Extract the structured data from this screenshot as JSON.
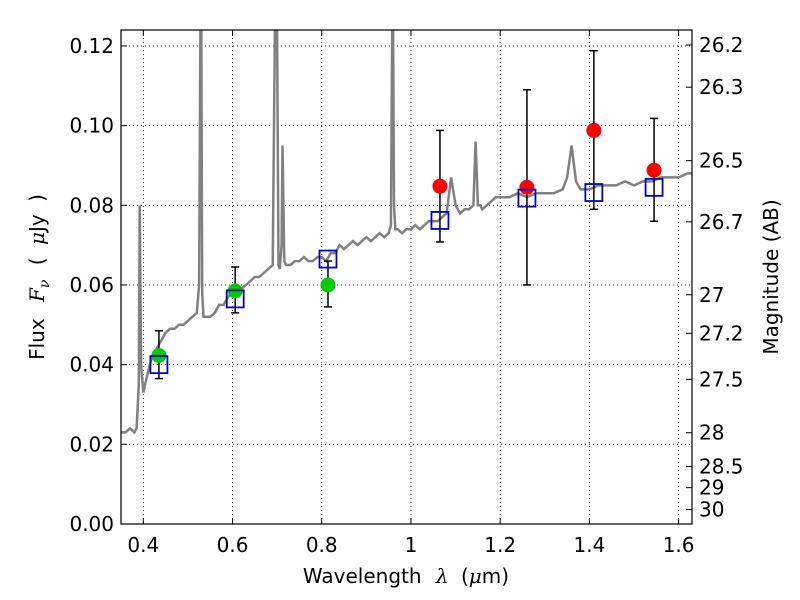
{
  "chart_data": {
    "type": "scatter",
    "xlabel_parts": [
      "Wavelength",
      "λ",
      "(",
      "μ",
      "m)"
    ],
    "ylabel_parts": [
      "Flux",
      "F",
      "ν",
      "(",
      "μ",
      "Jy",
      ")"
    ],
    "y2label": "Magnitude (AB)",
    "xlim": [
      0.35,
      1.63
    ],
    "ylim": [
      0.0,
      0.124
    ],
    "x_ticks": [
      0.4,
      0.6,
      0.8,
      1.0,
      1.2,
      1.4,
      1.6
    ],
    "x_tick_labels": [
      "0.4",
      "0.6",
      "0.8",
      "1",
      "1.2",
      "1.4",
      "1.6"
    ],
    "y_ticks": [
      0.0,
      0.02,
      0.04,
      0.06,
      0.08,
      0.1,
      0.12
    ],
    "y_tick_labels": [
      "0.00",
      "0.02",
      "0.04",
      "0.06",
      "0.08",
      "0.10",
      "0.12"
    ],
    "magnitude_ticks": [
      "26.2",
      "26.3",
      "26.5",
      "26.7",
      "27",
      "27.2",
      "27.5",
      "28",
      "28.5",
      "29",
      "30"
    ],
    "grid": true,
    "colors": {
      "spectrum": "#808080",
      "optical_points": "#00cc00",
      "infrared_points": "#ff0000",
      "model_squares": "#0000cc",
      "errorbar": "#000000"
    },
    "series": [
      {
        "marker": "green-circle",
        "x": [
          0.435,
          0.606,
          0.814
        ],
        "y": [
          0.0423,
          0.0585,
          0.06
        ],
        "yerr_low": [
          0.0365,
          0.053,
          0.0545
        ],
        "yerr_high": [
          0.0485,
          0.0645,
          0.066
        ]
      },
      {
        "marker": "red-circle",
        "x": [
          1.065,
          1.26,
          1.41,
          1.545
        ],
        "y": [
          0.0848,
          0.0845,
          0.0988,
          0.0888
        ],
        "yerr_low": [
          0.0708,
          0.06,
          0.079,
          0.076
        ],
        "yerr_high": [
          0.0988,
          0.109,
          0.1188,
          0.1018
        ]
      },
      {
        "marker": "blue-square",
        "x": [
          0.435,
          0.606,
          0.814,
          1.065,
          1.26,
          1.41,
          1.545
        ],
        "y": [
          0.04,
          0.0565,
          0.0665,
          0.0762,
          0.0818,
          0.0832,
          0.0845
        ]
      }
    ],
    "spectrum": {
      "x": [
        0.35,
        0.36,
        0.37,
        0.38,
        0.385,
        0.39,
        0.392,
        0.395,
        0.4,
        0.41,
        0.42,
        0.43,
        0.44,
        0.45,
        0.46,
        0.47,
        0.48,
        0.49,
        0.5,
        0.51,
        0.52,
        0.525,
        0.528,
        0.53,
        0.532,
        0.535,
        0.54,
        0.55,
        0.56,
        0.57,
        0.58,
        0.59,
        0.6,
        0.61,
        0.62,
        0.63,
        0.64,
        0.65,
        0.66,
        0.67,
        0.68,
        0.69,
        0.695,
        0.7,
        0.703,
        0.706,
        0.71,
        0.712,
        0.716,
        0.72,
        0.73,
        0.74,
        0.75,
        0.76,
        0.77,
        0.78,
        0.79,
        0.8,
        0.81,
        0.82,
        0.83,
        0.84,
        0.85,
        0.86,
        0.87,
        0.88,
        0.89,
        0.9,
        0.91,
        0.92,
        0.93,
        0.94,
        0.95,
        0.955,
        0.958,
        0.96,
        0.962,
        0.965,
        0.97,
        0.98,
        0.99,
        1.0,
        1.01,
        1.02,
        1.03,
        1.04,
        1.05,
        1.06,
        1.07,
        1.08,
        1.09,
        1.1,
        1.11,
        1.12,
        1.13,
        1.14,
        1.145,
        1.15,
        1.155,
        1.16,
        1.17,
        1.18,
        1.19,
        1.2,
        1.22,
        1.24,
        1.26,
        1.28,
        1.3,
        1.32,
        1.34,
        1.35,
        1.36,
        1.37,
        1.38,
        1.4,
        1.42,
        1.44,
        1.46,
        1.48,
        1.5,
        1.52,
        1.54,
        1.56,
        1.58,
        1.6,
        1.62,
        1.63
      ],
      "y": [
        0.023,
        0.023,
        0.024,
        0.023,
        0.024,
        0.035,
        0.08,
        0.04,
        0.033,
        0.038,
        0.042,
        0.044,
        0.046,
        0.048,
        0.049,
        0.049,
        0.05,
        0.05,
        0.051,
        0.052,
        0.053,
        0.06,
        0.124,
        0.124,
        0.058,
        0.052,
        0.052,
        0.052,
        0.053,
        0.055,
        0.055,
        0.057,
        0.058,
        0.058,
        0.059,
        0.06,
        0.061,
        0.062,
        0.062,
        0.063,
        0.064,
        0.065,
        0.124,
        0.124,
        0.065,
        0.064,
        0.07,
        0.095,
        0.066,
        0.065,
        0.065,
        0.066,
        0.066,
        0.067,
        0.066,
        0.066,
        0.067,
        0.067,
        0.066,
        0.068,
        0.068,
        0.07,
        0.069,
        0.07,
        0.071,
        0.07,
        0.071,
        0.072,
        0.071,
        0.072,
        0.073,
        0.072,
        0.073,
        0.075,
        0.124,
        0.124,
        0.08,
        0.074,
        0.074,
        0.073,
        0.074,
        0.074,
        0.075,
        0.074,
        0.075,
        0.076,
        0.076,
        0.076,
        0.077,
        0.078,
        0.087,
        0.08,
        0.078,
        0.079,
        0.079,
        0.08,
        0.096,
        0.08,
        0.08,
        0.079,
        0.08,
        0.081,
        0.082,
        0.082,
        0.082,
        0.083,
        0.082,
        0.083,
        0.083,
        0.083,
        0.084,
        0.087,
        0.095,
        0.086,
        0.084,
        0.084,
        0.085,
        0.085,
        0.085,
        0.086,
        0.085,
        0.086,
        0.086,
        0.087,
        0.087,
        0.087,
        0.088,
        0.088
      ]
    }
  }
}
